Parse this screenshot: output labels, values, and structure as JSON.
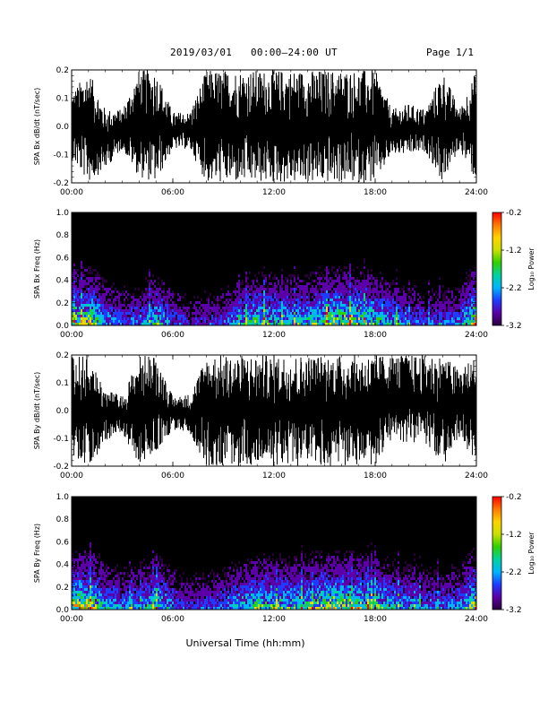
{
  "header": {
    "title": "2019/03/01   00:00–24:00 UT",
    "page": "Page 1/1"
  },
  "colors": {
    "background": "#ffffff",
    "trace": "#000000",
    "spectrogram_background": "#000000",
    "colormap": [
      "#2a003a",
      "#5b00a8",
      "#1e3cff",
      "#00b4ff",
      "#00d2a0",
      "#30d000",
      "#c8e000",
      "#ffd200",
      "#ff7a00",
      "#ff0000"
    ]
  },
  "chart_data": [
    {
      "type": "line",
      "ylabel": "SPA Bx dB/dt (nT/sec)",
      "ylim": [
        -0.2,
        0.2
      ],
      "yticks": [
        "-0.2",
        "-0.1",
        "0.0",
        "0.1",
        "0.2"
      ],
      "xlim": [
        "00:00",
        "24:00"
      ],
      "xticks": [
        "00:00",
        "06:00",
        "12:00",
        "18:00",
        "24:00"
      ],
      "series": [
        {
          "x_hours": [
            0,
            1,
            2,
            3,
            4,
            5,
            6,
            7,
            8,
            9,
            10,
            11,
            12,
            13,
            14,
            15,
            16,
            17,
            18,
            19,
            20,
            21,
            22,
            23,
            24
          ],
          "envelope_max": [
            0.12,
            0.2,
            0.06,
            0.06,
            0.2,
            0.2,
            0.05,
            0.05,
            0.2,
            0.2,
            0.2,
            0.2,
            0.2,
            0.2,
            0.2,
            0.2,
            0.2,
            0.2,
            0.2,
            0.06,
            0.08,
            0.06,
            0.2,
            0.06,
            0.2
          ],
          "envelope_min": [
            -0.12,
            -0.2,
            -0.15,
            -0.08,
            -0.18,
            -0.2,
            -0.08,
            -0.08,
            -0.2,
            -0.2,
            -0.2,
            -0.2,
            -0.2,
            -0.2,
            -0.2,
            -0.2,
            -0.2,
            -0.2,
            -0.2,
            -0.1,
            -0.1,
            -0.09,
            -0.2,
            -0.08,
            -0.2
          ]
        }
      ]
    },
    {
      "type": "heatmap",
      "ylabel": "SPA Bx Freq (Hz)",
      "ylim": [
        0.0,
        1.0
      ],
      "yticks": [
        "0.0",
        "0.2",
        "0.4",
        "0.6",
        "0.8",
        "1.0"
      ],
      "xlim": [
        "00:00",
        "24:00"
      ],
      "xticks": [
        "00:00",
        "06:00",
        "12:00",
        "18:00",
        "24:00"
      ],
      "colorbar": {
        "label": "Log₁₀ Power",
        "range": [
          -3.2,
          -0.2
        ],
        "ticks": [
          "-0.2",
          "-1.2",
          "-2.2",
          "-3.2"
        ]
      },
      "activity_hours": [
        0,
        1,
        2,
        3,
        4,
        5,
        6,
        7,
        8,
        9,
        10,
        11,
        12,
        13,
        14,
        15,
        16,
        17,
        18,
        19,
        20,
        21,
        22,
        23,
        24
      ],
      "activity": [
        0.7,
        0.75,
        0.4,
        0.3,
        0.35,
        0.55,
        0.3,
        0.2,
        0.25,
        0.3,
        0.45,
        0.6,
        0.55,
        0.5,
        0.55,
        0.7,
        0.75,
        0.7,
        0.6,
        0.45,
        0.35,
        0.3,
        0.3,
        0.35,
        0.9
      ]
    },
    {
      "type": "line",
      "ylabel": "SPA By dB/dt (nT/sec)",
      "ylim": [
        -0.2,
        0.2
      ],
      "yticks": [
        "-0.2",
        "-0.1",
        "0.0",
        "0.1",
        "0.2"
      ],
      "xlim": [
        "00:00",
        "24:00"
      ],
      "xticks": [
        "00:00",
        "06:00",
        "12:00",
        "18:00",
        "24:00"
      ],
      "series": [
        {
          "x_hours": [
            0,
            1,
            2,
            3,
            4,
            5,
            6,
            7,
            8,
            9,
            10,
            11,
            12,
            13,
            14,
            15,
            16,
            17,
            18,
            19,
            20,
            21,
            22,
            23,
            24
          ],
          "envelope_max": [
            0.2,
            0.2,
            0.08,
            0.05,
            0.2,
            0.2,
            0.05,
            0.06,
            0.2,
            0.2,
            0.2,
            0.2,
            0.2,
            0.2,
            0.2,
            0.2,
            0.2,
            0.2,
            0.2,
            0.2,
            0.2,
            0.2,
            0.2,
            0.15,
            0.2
          ],
          "envelope_min": [
            -0.2,
            -0.2,
            -0.12,
            -0.08,
            -0.2,
            -0.15,
            -0.07,
            -0.08,
            -0.2,
            -0.2,
            -0.2,
            -0.2,
            -0.2,
            -0.2,
            -0.2,
            -0.2,
            -0.2,
            -0.2,
            -0.2,
            -0.1,
            -0.12,
            -0.12,
            -0.2,
            -0.1,
            -0.2
          ]
        }
      ]
    },
    {
      "type": "heatmap",
      "ylabel": "SPA By Freq (Hz)",
      "ylim": [
        0.0,
        1.0
      ],
      "yticks": [
        "0.0",
        "0.2",
        "0.4",
        "0.6",
        "0.8",
        "1.0"
      ],
      "xlim": [
        "00:00",
        "24:00"
      ],
      "xticks": [
        "00:00",
        "06:00",
        "12:00",
        "18:00",
        "24:00"
      ],
      "colorbar": {
        "label": "Log₁₀ Power",
        "range": [
          -3.2,
          -0.2
        ],
        "ticks": [
          "-0.2",
          "-1.2",
          "-2.2",
          "-3.2"
        ]
      },
      "activity_hours": [
        0,
        1,
        2,
        3,
        4,
        5,
        6,
        7,
        8,
        9,
        10,
        11,
        12,
        13,
        14,
        15,
        16,
        17,
        18,
        19,
        20,
        21,
        22,
        23,
        24
      ],
      "activity": [
        0.75,
        0.8,
        0.45,
        0.35,
        0.4,
        0.6,
        0.35,
        0.25,
        0.3,
        0.35,
        0.5,
        0.6,
        0.6,
        0.55,
        0.6,
        0.75,
        0.75,
        0.7,
        0.6,
        0.5,
        0.4,
        0.35,
        0.35,
        0.4,
        0.9
      ]
    }
  ],
  "xlabel": "Universal Time (hh:mm)"
}
